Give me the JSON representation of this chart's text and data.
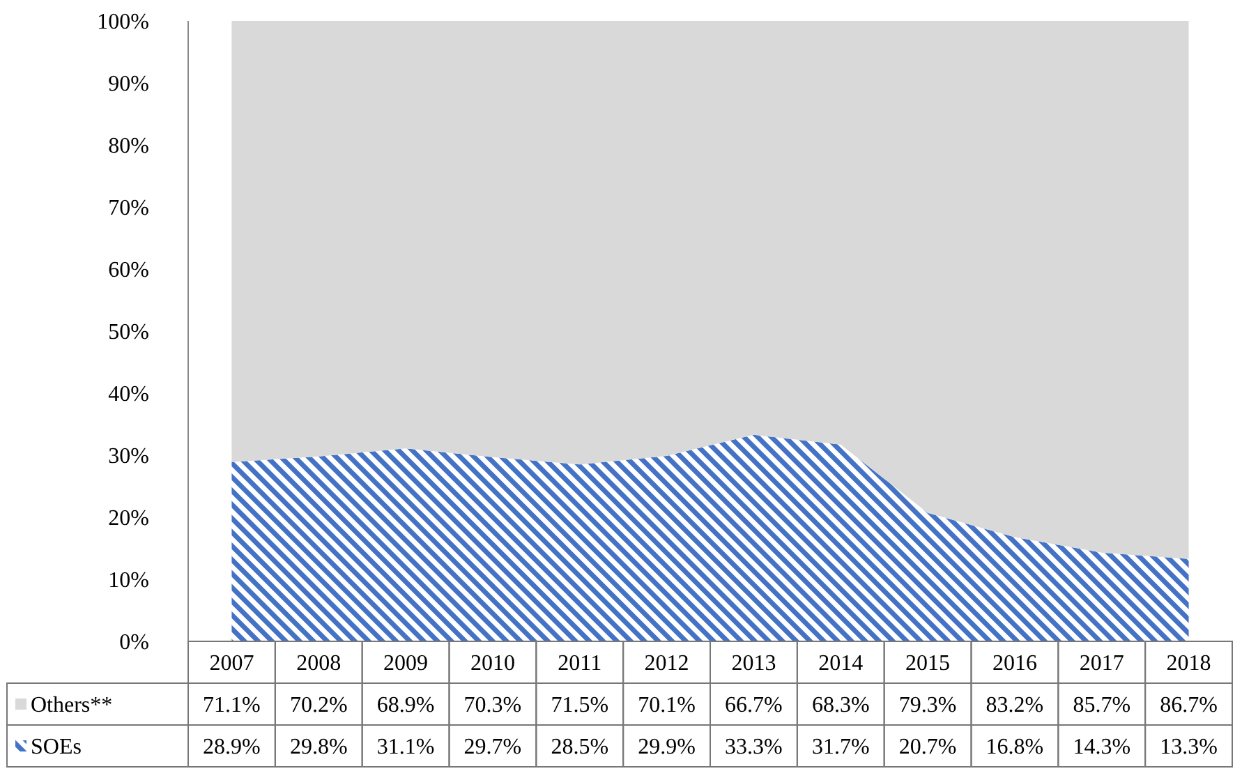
{
  "chart_data": {
    "type": "area",
    "stacked": true,
    "categories": [
      "2007",
      "2008",
      "2009",
      "2010",
      "2011",
      "2012",
      "2013",
      "2014",
      "2015",
      "2016",
      "2017",
      "2018"
    ],
    "series": [
      {
        "name": "SOEs",
        "color": "#4472c4",
        "values": [
          28.9,
          29.8,
          31.1,
          29.7,
          28.5,
          29.9,
          33.3,
          31.7,
          20.7,
          16.8,
          14.3,
          13.3
        ],
        "value_labels": [
          "28.9%",
          "29.8%",
          "31.1%",
          "29.7%",
          "28.5%",
          "29.9%",
          "33.3%",
          "31.7%",
          "20.7%",
          "16.8%",
          "14.3%",
          "13.3%"
        ]
      },
      {
        "name": "Others**",
        "color": "#d9d9d9",
        "values": [
          71.1,
          70.2,
          68.9,
          70.3,
          71.5,
          70.1,
          66.7,
          68.3,
          79.3,
          83.2,
          85.7,
          86.7
        ],
        "value_labels": [
          "71.1%",
          "70.2%",
          "68.9%",
          "70.3%",
          "71.5%",
          "70.1%",
          "66.7%",
          "68.3%",
          "79.3%",
          "83.2%",
          "85.7%",
          "86.7%"
        ]
      }
    ],
    "ylim": [
      0,
      100
    ],
    "yticks": [
      {
        "value": 0,
        "label": "0%"
      },
      {
        "value": 10,
        "label": "10%"
      },
      {
        "value": 20,
        "label": "20%"
      },
      {
        "value": 30,
        "label": "30%"
      },
      {
        "value": 40,
        "label": "40%"
      },
      {
        "value": 50,
        "label": "50%"
      },
      {
        "value": 60,
        "label": "60%"
      },
      {
        "value": 70,
        "label": "70%"
      },
      {
        "value": 80,
        "label": "80%"
      },
      {
        "value": 90,
        "label": "90%"
      },
      {
        "value": 100,
        "label": "100%"
      }
    ],
    "grid": false,
    "legend": "bottom"
  }
}
